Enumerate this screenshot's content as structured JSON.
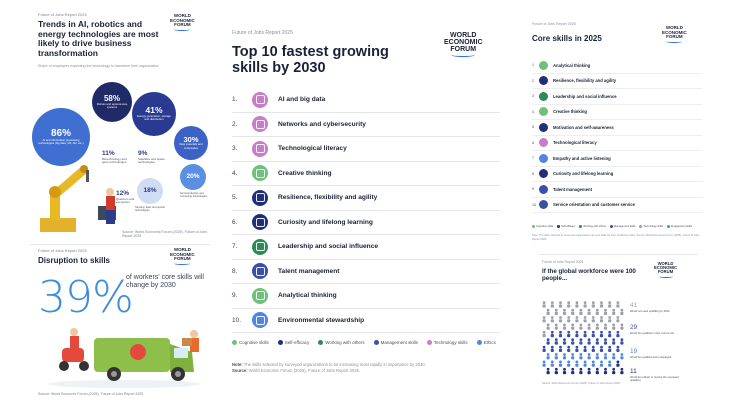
{
  "left": {
    "kicker": "Future of Jobs Report 2025",
    "wef": [
      "WORLD",
      "ECONOMIC",
      "FORUM"
    ],
    "title": "Trends in AI, robotics and energy technologies are most likely to drive business transformation",
    "subtitle": "Share of employers expecting the technology to transform their organization",
    "bubbles": [
      {
        "pct": "58%",
        "desc": "Robots and autonomous systems",
        "color": "#1f2a66",
        "text": "#ffffff"
      },
      {
        "pct": "41%",
        "desc": "Energy generation, storage and distribution",
        "color": "#2a3a90",
        "text": "#ffffff"
      },
      {
        "pct": "86%",
        "desc": "AI and information processing technologies (big data, VR, AR, etc.)",
        "color": "#3f6fd1",
        "text": "#ffffff"
      },
      {
        "pct": "30%",
        "desc": "New materials and composites",
        "color": "#3d62c6",
        "text": "#ffffff"
      },
      {
        "pct": "20%",
        "desc": "Semiconductors and computing technologies",
        "color": "#5b8fe0",
        "text": "#ffffff"
      },
      {
        "pct": "18%",
        "desc": "Sensing, laser and optical technologies",
        "color": "#cfdcf3",
        "text": "#2d3a8c"
      }
    ],
    "notes": [
      {
        "pct": "11%",
        "desc": "Biotechnology and gene technologies"
      },
      {
        "pct": "9%",
        "desc": "Satellites and space technologies"
      },
      {
        "pct": "12%",
        "desc": "Quantum and encryption"
      }
    ],
    "source1": "Source: World Economic Forum (2025), Future of Jobs Report 2025",
    "kicker2": "Future of Jobs Report 2025",
    "disruption_title": "Disruption to skills",
    "big_number": "39%",
    "big_desc": "of workers' core skills will change by 2030",
    "source2": "Source: World Economic Forum (2025), Future of Jobs Report 2025"
  },
  "mid": {
    "kicker": "Future of Jobs Report 2025",
    "title": "Top 10 fastest growing skills by 2030",
    "wef": [
      "WORLD",
      "ECONOMIC",
      "FORUM"
    ],
    "skills": [
      {
        "num": "1.",
        "label": "AI and big data",
        "color": "#c77dc7"
      },
      {
        "num": "2.",
        "label": "Networks and cybersecurity",
        "color": "#c77dc7"
      },
      {
        "num": "3.",
        "label": "Technological literacy",
        "color": "#c77dc7"
      },
      {
        "num": "4.",
        "label": "Creative thinking",
        "color": "#6ec07a"
      },
      {
        "num": "5.",
        "label": "Resilience, flexibility and agility",
        "color": "#1f2f7a"
      },
      {
        "num": "6.",
        "label": "Curiosity and lifelong learning",
        "color": "#1f2f7a"
      },
      {
        "num": "7.",
        "label": "Leadership and social influence",
        "color": "#2e8b57"
      },
      {
        "num": "8.",
        "label": "Talent management",
        "color": "#3b4fa8"
      },
      {
        "num": "9.",
        "label": "Analytical thinking",
        "color": "#6ec07a"
      },
      {
        "num": "10.",
        "label": "Environmental stewardship",
        "color": "#4f86e0"
      }
    ],
    "legend": [
      {
        "label": "Cognitive skills",
        "color": "#6ec07a"
      },
      {
        "label": "Self-efficacy",
        "color": "#1f2f7a"
      },
      {
        "label": "Working with others",
        "color": "#2e8b57"
      },
      {
        "label": "Management skills",
        "color": "#3b4fa8"
      },
      {
        "label": "Technology skills",
        "color": "#c77dc7"
      },
      {
        "label": "Ethics",
        "color": "#4f86e0"
      }
    ],
    "note_label": "Note:",
    "note": "The skills selected by surveyed organizations to be increasing most rapidly in importance by 2030.",
    "source_label": "Source:",
    "source": "World Economic Forum (2025), Future of Jobs Report 2025."
  },
  "right": {
    "kicker": "Future of Jobs Report 2025",
    "title": "Core skills in 2025",
    "wef": [
      "WORLD",
      "ECONOMIC",
      "FORUM"
    ],
    "skills": [
      {
        "num": "1",
        "label": "Analytical thinking",
        "color": "#6ec07a"
      },
      {
        "num": "2",
        "label": "Resilience, flexibility and agility",
        "color": "#1f2f7a"
      },
      {
        "num": "3",
        "label": "Leadership and social influence",
        "color": "#2e8b57"
      },
      {
        "num": "4",
        "label": "Creative thinking",
        "color": "#6ec07a"
      },
      {
        "num": "5",
        "label": "Motivation and self-awareness",
        "color": "#1f2f7a"
      },
      {
        "num": "6",
        "label": "Technological literacy",
        "color": "#c77dc7"
      },
      {
        "num": "7",
        "label": "Empathy and active listening",
        "color": "#4f86e0"
      },
      {
        "num": "8",
        "label": "Curiosity and lifelong learning",
        "color": "#1f2f7a"
      },
      {
        "num": "9",
        "label": "Talent management",
        "color": "#3b4fa8"
      },
      {
        "num": "10",
        "label": "Service orientation and customer service",
        "color": "#3b4fa8"
      }
    ],
    "legend": [
      {
        "label": "Cognitive skills",
        "color": "#6ec07a"
      },
      {
        "label": "Self-efficacy",
        "color": "#1f2f7a"
      },
      {
        "label": "Working with others",
        "color": "#2e8b57"
      },
      {
        "label": "Management skills",
        "color": "#3b4fa8"
      },
      {
        "label": "Technology skills",
        "color": "#c77dc7"
      },
      {
        "label": "Engagement skills",
        "color": "#4f86e0"
      }
    ],
    "note": "Note: The skills selected by surveyed organizations as core skills for their workforce today. Source: World Economic Forum (2025), Future of Jobs Report 2025.",
    "kicker2": "Future of Jobs Report 2025",
    "title2": "If the global workforce were 100 people...",
    "stats": [
      {
        "n": "41",
        "desc": "Would not need upskilling by 2030",
        "color": "#9aa0ad"
      },
      {
        "n": "29",
        "desc": "Would be upskilled in their current role",
        "color": "#3b4fa8"
      },
      {
        "n": "19",
        "desc": "Would be upskilled and re-deployed",
        "color": "#4f86e0"
      },
      {
        "n": "11",
        "desc": "Would be unlikely to receive the necessary upskilling",
        "color": "#1f2f7a"
      }
    ],
    "source2": "Source: World Economic Forum (2025), Future of Jobs Report 2025"
  }
}
